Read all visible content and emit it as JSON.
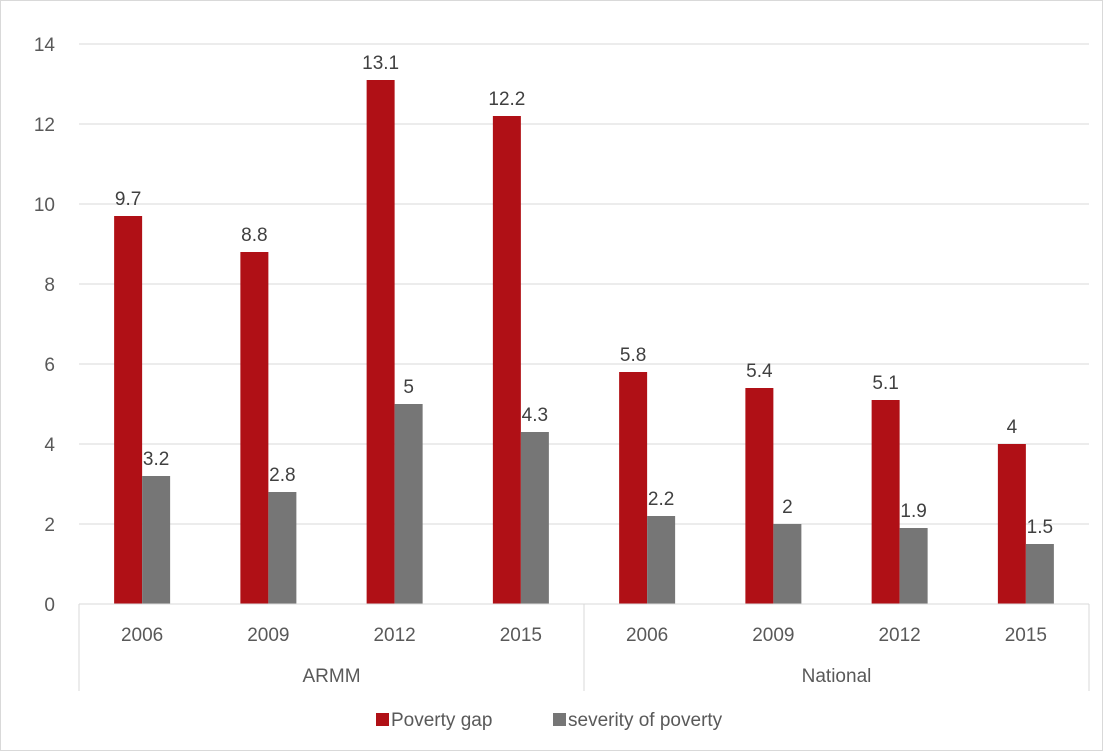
{
  "chart_data": {
    "type": "bar",
    "groups": [
      {
        "name": "ARMM",
        "categories": [
          "2006",
          "2009",
          "2012",
          "2015"
        ]
      },
      {
        "name": "National",
        "categories": [
          "2006",
          "2009",
          "2012",
          "2015"
        ]
      }
    ],
    "series": [
      {
        "name": "Poverty gap",
        "color": "#b01016",
        "values": [
          9.7,
          8.8,
          13.1,
          12.2,
          5.8,
          5.4,
          5.1,
          4
        ]
      },
      {
        "name": "severity of poverty",
        "color": "#767676",
        "values": [
          3.2,
          2.8,
          5,
          4.3,
          2.2,
          2,
          1.9,
          1.5
        ]
      }
    ],
    "data_labels": [
      [
        "9.7",
        "8.8",
        "13.1",
        "12.2",
        "5.8",
        "5.4",
        "5.1",
        "4"
      ],
      [
        "3.2",
        "2.8",
        "5",
        "4.3",
        "2.2",
        "2",
        "1.9",
        "1.5"
      ]
    ],
    "y_ticks": [
      "0",
      "2",
      "4",
      "6",
      "8",
      "10",
      "12",
      "14"
    ],
    "ylim": [
      0,
      14
    ],
    "grid": true,
    "legend_position": "bottom",
    "title": "",
    "xlabel": "",
    "ylabel": ""
  }
}
